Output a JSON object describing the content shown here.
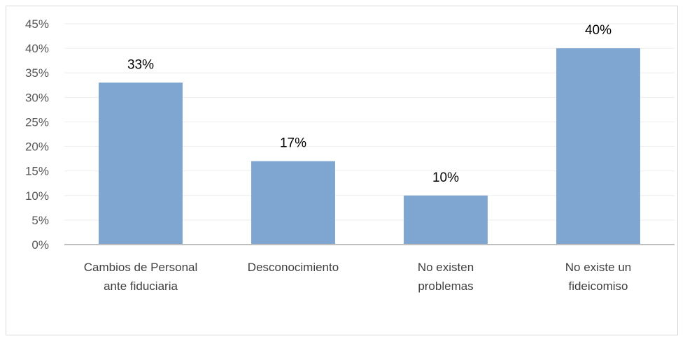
{
  "chart_data": {
    "type": "bar",
    "categories": [
      [
        "Cambios de Personal",
        "ante fiduciaria"
      ],
      [
        "Desconocimiento"
      ],
      [
        "No existen",
        "problemas"
      ],
      [
        "No existe un",
        "fideicomiso"
      ]
    ],
    "values": [
      33,
      17,
      10,
      40
    ],
    "data_labels": [
      "33%",
      "17%",
      "10%",
      "40%"
    ],
    "y_ticks": [
      "0%",
      "5%",
      "10%",
      "15%",
      "20%",
      "25%",
      "30%",
      "35%",
      "40%",
      "45%"
    ],
    "ylim": [
      0,
      45
    ],
    "y_unit": "%",
    "grid": true,
    "bar_color": "#7ea6d1",
    "gridline_color": "#eeeeee",
    "axis_color": "#bfbfbf"
  }
}
